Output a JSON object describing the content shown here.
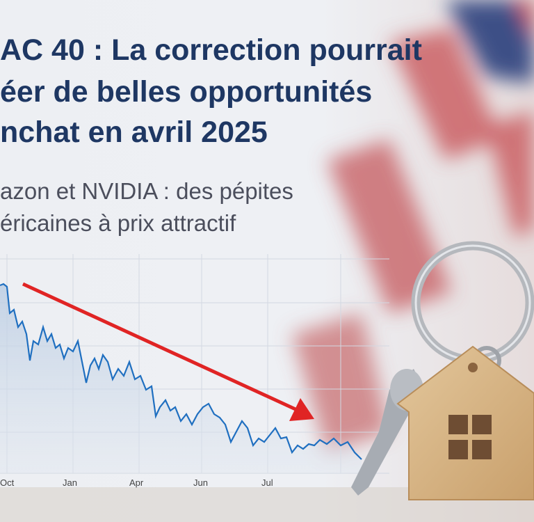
{
  "headline": {
    "lines": [
      "AC 40 : La correction pourrait",
      "éer de belles opportunités",
      "nchat en avril 2025"
    ]
  },
  "subheadline": {
    "lines": [
      "azon et NVIDIA : des pépites",
      "éricaines à prix attractif"
    ]
  },
  "chart": {
    "x_labels": [
      "Oct",
      "Jan",
      "Apr",
      "Jun",
      "Jul"
    ]
  }
}
